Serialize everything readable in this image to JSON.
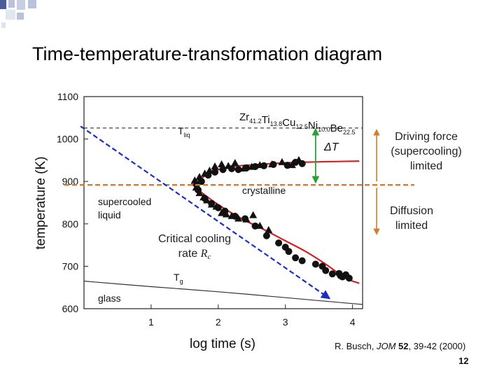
{
  "slide": {
    "title": "Time-temperature-transformation diagram",
    "page_number": "12",
    "citation": {
      "author": "R. Busch, ",
      "journal": "JOM",
      "volume": "52",
      "rest": ", 39-42 (2000)"
    },
    "notes": {
      "driving_force": [
        "Driving force",
        "(supercooling)",
        "limited"
      ],
      "diffusion": [
        "Diffusion",
        "limited"
      ],
      "critical_cooling": [
        "Critical cooling",
        "rate "
      ],
      "critical_symbol": "R",
      "critical_sub": "c"
    }
  },
  "colors": {
    "red_curve": "#d42020",
    "blue_arrow": "#1a2fbf",
    "orange_line": "#d77a2c",
    "green_arrow": "#2e9e3a",
    "deco_square": "#4a5c9c"
  },
  "chart_data": {
    "type": "scatter",
    "xlabel": "log time (s)",
    "ylabel": "temperature (K)",
    "xlim": [
      0,
      4.15
    ],
    "ylim": [
      600,
      1100
    ],
    "xticks": [
      1,
      2,
      3,
      4
    ],
    "yticks": [
      600,
      700,
      800,
      900,
      1000,
      1100
    ],
    "alloy": {
      "parts": [
        [
          "Zr",
          "41.2"
        ],
        [
          "Ti",
          "13.8"
        ],
        [
          "Cu",
          "12.5"
        ],
        [
          "Ni",
          "10.0"
        ],
        [
          "Be",
          "22.5"
        ]
      ]
    },
    "labels": {
      "tliq": "T",
      "tliq_sub": "liq",
      "tg": "T",
      "tg_sub": "g",
      "crystalline": "crystalline",
      "supercooled": [
        "supercooled",
        "liquid"
      ],
      "glass": "glass",
      "delta_t": "ΔT"
    },
    "t_liq": 1026,
    "nose_temperature": 895,
    "series": [
      {
        "name": "crystallization onset (triangles)",
        "marker": "triangle",
        "points": [
          [
            1.65,
            902
          ],
          [
            1.72,
            910
          ],
          [
            1.8,
            918
          ],
          [
            1.87,
            925
          ],
          [
            1.95,
            935
          ],
          [
            2.05,
            940
          ],
          [
            2.15,
            936
          ],
          [
            2.25,
            943
          ],
          [
            2.38,
            930
          ],
          [
            2.5,
            934
          ],
          [
            2.62,
            938
          ],
          [
            2.8,
            940
          ],
          [
            2.95,
            945
          ],
          [
            3.1,
            938
          ],
          [
            3.2,
            950
          ],
          [
            1.67,
            885
          ],
          [
            1.72,
            872
          ],
          [
            1.78,
            862
          ],
          [
            1.83,
            855
          ],
          [
            1.9,
            845
          ],
          [
            1.97,
            840
          ],
          [
            2.05,
            825
          ],
          [
            2.12,
            822
          ],
          [
            2.2,
            818
          ],
          [
            2.3,
            812
          ],
          [
            2.42,
            810
          ],
          [
            2.52,
            820
          ],
          [
            2.62,
            795
          ],
          [
            2.75,
            785
          ]
        ]
      },
      {
        "name": "crystallization end (circles)",
        "marker": "circle",
        "points": [
          [
            1.68,
            893
          ],
          [
            1.75,
            900
          ],
          [
            1.85,
            915
          ],
          [
            1.95,
            922
          ],
          [
            2.07,
            928
          ],
          [
            2.2,
            930
          ],
          [
            2.3,
            928
          ],
          [
            2.42,
            932
          ],
          [
            2.55,
            935
          ],
          [
            2.68,
            937
          ],
          [
            2.82,
            940
          ],
          [
            3.03,
            938
          ],
          [
            3.15,
            945
          ],
          [
            3.25,
            942
          ],
          [
            1.7,
            880
          ],
          [
            1.8,
            860
          ],
          [
            1.9,
            848
          ],
          [
            2.0,
            838
          ],
          [
            2.1,
            830
          ],
          [
            2.25,
            818
          ],
          [
            2.4,
            812
          ],
          [
            2.55,
            795
          ],
          [
            2.72,
            772
          ],
          [
            2.9,
            755
          ],
          [
            3.0,
            745
          ],
          [
            3.05,
            735
          ],
          [
            3.15,
            720
          ],
          [
            3.25,
            713
          ],
          [
            3.45,
            705
          ],
          [
            3.55,
            700
          ],
          [
            3.6,
            690
          ],
          [
            3.7,
            682
          ],
          [
            3.8,
            683
          ],
          [
            3.82,
            678
          ],
          [
            3.85,
            675
          ],
          [
            3.95,
            672
          ],
          [
            3.9,
            680
          ]
        ]
      }
    ],
    "curves": {
      "crystallization_upper": [
        [
          1.6,
          895
        ],
        [
          1.75,
          908
        ],
        [
          1.95,
          925
        ],
        [
          2.2,
          935
        ],
        [
          2.6,
          940
        ],
        [
          3.2,
          945
        ],
        [
          4.1,
          948
        ]
      ],
      "crystallization_lower": [
        [
          1.6,
          895
        ],
        [
          1.8,
          868
        ],
        [
          2.1,
          835
        ],
        [
          2.4,
          808
        ],
        [
          2.7,
          785
        ],
        [
          3.0,
          760
        ],
        [
          3.3,
          735
        ],
        [
          3.6,
          705
        ],
        [
          3.9,
          672
        ],
        [
          4.1,
          660
        ]
      ],
      "t_g": [
        [
          0,
          665
        ],
        [
          1,
          652
        ],
        [
          2,
          640
        ],
        [
          3,
          626
        ],
        [
          4,
          612
        ],
        [
          4.15,
          610
        ]
      ]
    },
    "cooling_arrow": {
      "start": [
        -0.05,
        1030
      ],
      "end": [
        3.65,
        625
      ]
    },
    "delta_t_arrow": {
      "x": 3.45,
      "from": 1026,
      "to": 895
    },
    "diffusion_arrow": {
      "x": 5.0,
      "from": 1020,
      "to": 792
    }
  }
}
